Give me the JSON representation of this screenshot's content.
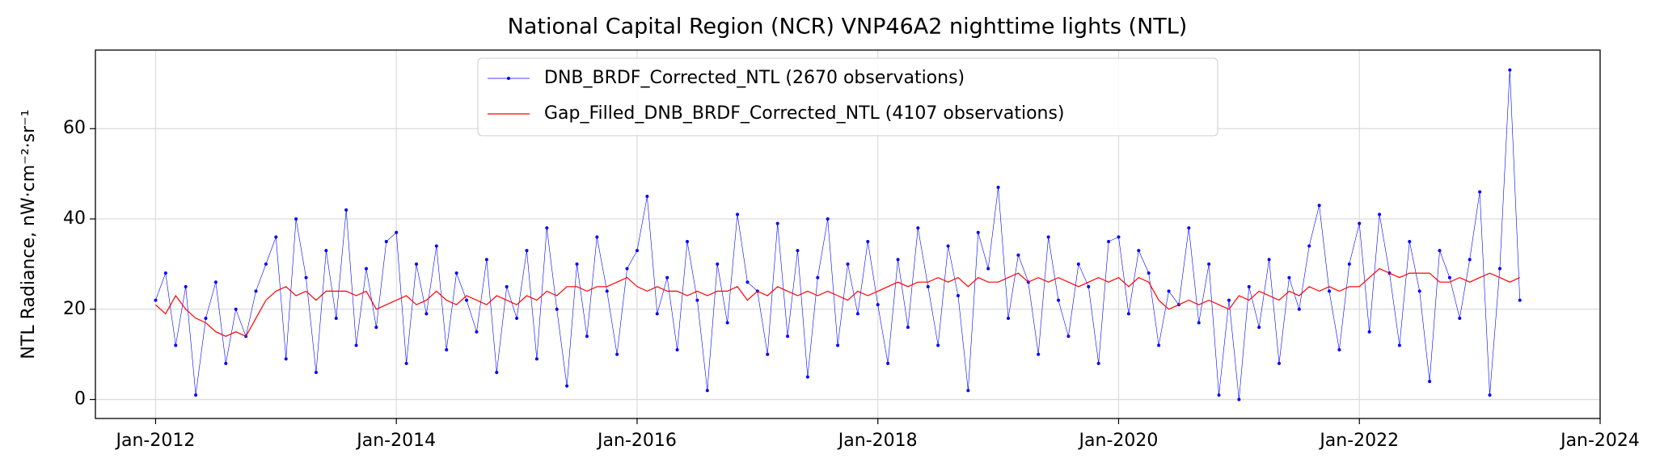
{
  "chart_data": {
    "type": "line",
    "title": "National Capital Region (NCR) VNP46A2 nighttime lights (NTL)",
    "y_label": "NTL Radiance, nW·cm⁻²·sr⁻¹",
    "x": [
      "2012-01",
      "2012-02",
      "2012-03",
      "2012-04",
      "2012-05",
      "2012-06",
      "2012-07",
      "2012-08",
      "2012-09",
      "2012-10",
      "2012-11",
      "2012-12",
      "2013-01",
      "2013-02",
      "2013-03",
      "2013-04",
      "2013-05",
      "2013-06",
      "2013-07",
      "2013-08",
      "2013-09",
      "2013-10",
      "2013-11",
      "2013-12",
      "2014-01",
      "2014-02",
      "2014-03",
      "2014-04",
      "2014-05",
      "2014-06",
      "2014-07",
      "2014-08",
      "2014-09",
      "2014-10",
      "2014-11",
      "2014-12",
      "2015-01",
      "2015-02",
      "2015-03",
      "2015-04",
      "2015-05",
      "2015-06",
      "2015-07",
      "2015-08",
      "2015-09",
      "2015-10",
      "2015-11",
      "2015-12",
      "2016-01",
      "2016-02",
      "2016-03",
      "2016-04",
      "2016-05",
      "2016-06",
      "2016-07",
      "2016-08",
      "2016-09",
      "2016-10",
      "2016-11",
      "2016-12",
      "2017-01",
      "2017-02",
      "2017-03",
      "2017-04",
      "2017-05",
      "2017-06",
      "2017-07",
      "2017-08",
      "2017-09",
      "2017-10",
      "2017-11",
      "2017-12",
      "2018-01",
      "2018-02",
      "2018-03",
      "2018-04",
      "2018-05",
      "2018-06",
      "2018-07",
      "2018-08",
      "2018-09",
      "2018-10",
      "2018-11",
      "2018-12",
      "2019-01",
      "2019-02",
      "2019-03",
      "2019-04",
      "2019-05",
      "2019-06",
      "2019-07",
      "2019-08",
      "2019-09",
      "2019-10",
      "2019-11",
      "2019-12",
      "2020-01",
      "2020-02",
      "2020-03",
      "2020-04",
      "2020-05",
      "2020-06",
      "2020-07",
      "2020-08",
      "2020-09",
      "2020-10",
      "2020-11",
      "2020-12",
      "2021-01",
      "2021-02",
      "2021-03",
      "2021-04",
      "2021-05",
      "2021-06",
      "2021-07",
      "2021-08",
      "2021-09",
      "2021-10",
      "2021-11",
      "2021-12",
      "2022-01",
      "2022-02",
      "2022-03",
      "2022-04",
      "2022-05",
      "2022-06",
      "2022-07",
      "2022-08",
      "2022-09",
      "2022-10",
      "2022-11",
      "2022-12",
      "2023-01",
      "2023-02",
      "2023-03",
      "2023-04",
      "2023-05"
    ],
    "series": [
      {
        "name": "DNB_BRDF_Corrected_NTL (2670 observations)",
        "color": "#0000ff",
        "marker": true,
        "values": [
          22,
          28,
          12,
          25,
          1,
          18,
          26,
          8,
          20,
          14,
          24,
          30,
          36,
          9,
          40,
          27,
          6,
          33,
          18,
          42,
          12,
          29,
          16,
          35,
          37,
          8,
          30,
          19,
          34,
          11,
          28,
          22,
          15,
          31,
          6,
          25,
          18,
          33,
          9,
          38,
          20,
          3,
          30,
          14,
          36,
          24,
          10,
          29,
          33,
          45,
          19,
          27,
          11,
          35,
          22,
          2,
          30,
          17,
          41,
          26,
          24,
          10,
          39,
          14,
          33,
          5,
          27,
          40,
          12,
          30,
          19,
          35,
          21,
          8,
          31,
          16,
          38,
          25,
          12,
          34,
          23,
          2,
          37,
          29,
          47,
          18,
          32,
          26,
          10,
          36,
          22,
          14,
          30,
          25,
          8,
          35,
          36,
          19,
          33,
          28,
          12,
          24,
          21,
          38,
          17,
          30,
          1,
          22,
          0,
          25,
          16,
          31,
          8,
          27,
          20,
          34,
          43,
          24,
          11,
          30,
          39,
          15,
          41,
          28,
          12,
          35,
          24,
          4,
          33,
          27,
          18,
          31,
          46,
          1,
          29,
          73,
          22
        ]
      },
      {
        "name": "Gap_Filled_DNB_BRDF_Corrected_NTL (4107 observations)",
        "color": "#ff0000",
        "marker": false,
        "values": [
          21,
          19,
          23,
          20,
          18,
          17,
          15,
          14,
          15,
          14,
          18,
          22,
          24,
          25,
          23,
          24,
          22,
          24,
          24,
          24,
          23,
          24,
          20,
          21,
          22,
          23,
          21,
          22,
          24,
          22,
          21,
          23,
          22,
          21,
          23,
          22,
          21,
          23,
          22,
          24,
          23,
          25,
          25,
          24,
          25,
          25,
          26,
          27,
          25,
          24,
          25,
          24,
          24,
          23,
          24,
          23,
          24,
          24,
          25,
          22,
          24,
          23,
          25,
          24,
          23,
          24,
          23,
          24,
          23,
          22,
          24,
          23,
          24,
          25,
          26,
          25,
          26,
          26,
          27,
          26,
          27,
          25,
          27,
          26,
          26,
          27,
          28,
          26,
          27,
          26,
          27,
          26,
          25,
          26,
          27,
          26,
          27,
          25,
          27,
          26,
          22,
          20,
          21,
          22,
          21,
          22,
          21,
          20,
          23,
          22,
          24,
          23,
          22,
          24,
          23,
          25,
          24,
          25,
          24,
          25,
          25,
          27,
          29,
          28,
          27,
          28,
          28,
          28,
          26,
          26,
          27,
          26,
          27,
          28,
          27,
          26,
          27
        ]
      }
    ],
    "xlim": [
      "2011-07",
      "2024-01"
    ],
    "xticks": [
      {
        "value": "2012-01",
        "label": "Jan-2012"
      },
      {
        "value": "2014-01",
        "label": "Jan-2014"
      },
      {
        "value": "2016-01",
        "label": "Jan-2016"
      },
      {
        "value": "2018-01",
        "label": "Jan-2018"
      },
      {
        "value": "2020-01",
        "label": "Jan-2020"
      },
      {
        "value": "2022-01",
        "label": "Jan-2022"
      },
      {
        "value": "2024-01",
        "label": "Jan-2024"
      }
    ],
    "ylim": [
      -4.2,
      77.4
    ],
    "yticks": [
      0,
      20,
      40,
      60
    ],
    "grid": true,
    "legend": "upper center"
  }
}
